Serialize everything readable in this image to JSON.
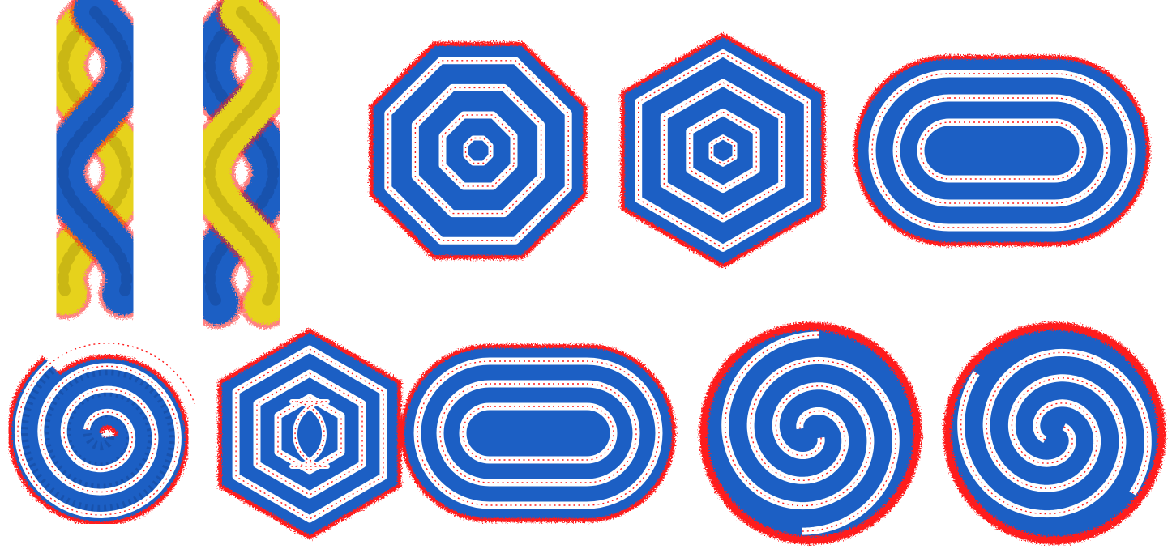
{
  "figure": {
    "colors": {
      "background": "#ffffff",
      "blue_layer": "#1f5fc4",
      "blue_dark": "#164a9e",
      "red_chains": "#ff1a1a",
      "yellow_strand": "#e6d21a",
      "yellow_dark": "#b8a50f"
    },
    "panels": [
      {
        "id": "double-helix-a",
        "shape": "double helix",
        "colors": [
          "blue",
          "yellow"
        ]
      },
      {
        "id": "double-helix-b",
        "shape": "double helix",
        "colors": [
          "yellow",
          "blue"
        ]
      },
      {
        "id": "octagonal-rings",
        "shape": "concentric octagonal rings",
        "rings": 3
      },
      {
        "id": "hexagonal-rings",
        "shape": "concentric hexagonal rings",
        "rings": 3
      },
      {
        "id": "stadium-rings",
        "shape": "concentric stadium rings",
        "rings": 3
      },
      {
        "id": "circular-spiral",
        "shape": "single-armed circular spiral"
      },
      {
        "id": "hexagonal-spiral",
        "shape": "hexagonal spiral"
      },
      {
        "id": "stadium-spiral",
        "shape": "stadium spiral"
      },
      {
        "id": "double-spiral-a",
        "shape": "two-armed spiral"
      },
      {
        "id": "double-spiral-b",
        "shape": "two-armed spiral"
      }
    ]
  }
}
